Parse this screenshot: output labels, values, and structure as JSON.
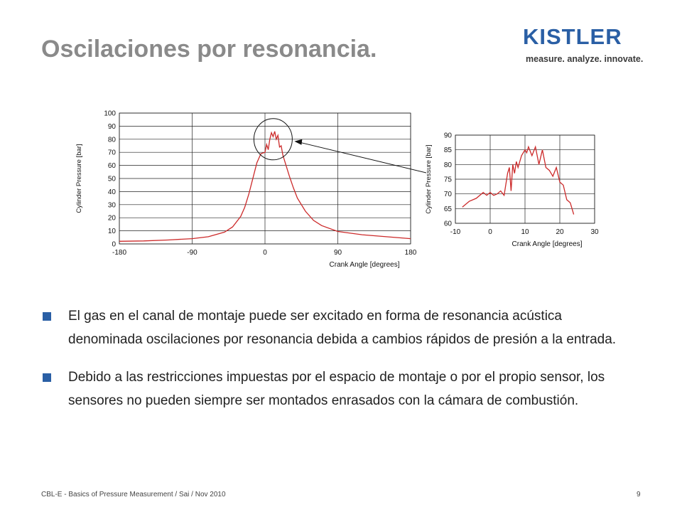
{
  "slide": {
    "title": "Oscilaciones por resonancia.",
    "logo": {
      "word": "KISTLER",
      "tagline": "measure. analyze. innovate."
    },
    "bullets": [
      "El gas en el canal de montaje puede ser excitado en forma de resonancia acústica denominada oscilaciones por resonancia debida a cambios rápidos de presión a la entrada.",
      "Debido a las restricciones impuestas por el espacio de montaje o por el propio sensor, los sensores no pueden siempre ser montados enrasados con la cámara de combustión."
    ],
    "footer": "CBL-E - Basics of Pressure Measurement / Sai / Nov 2010",
    "page_number": "9"
  },
  "colors": {
    "curve": "#cc2a2a",
    "bullet": "#2a5fa5",
    "title": "#8a8a8a",
    "logo": "#2a5fa5"
  },
  "chart_data": [
    {
      "type": "line",
      "xlabel": "Crank Angle [degrees]",
      "ylabel": "Cylinder Pressure [bar]",
      "xlim": [
        -180,
        180
      ],
      "ylim": [
        0,
        100
      ],
      "x_ticks": [
        "-180",
        "-90",
        "0",
        "90",
        "180"
      ],
      "y_ticks": [
        "0",
        "10",
        "20",
        "30",
        "40",
        "50",
        "60",
        "70",
        "80",
        "90",
        "100"
      ],
      "grid": true,
      "annotation": "circle around peak with arrow to zoomed view",
      "series": [
        {
          "x": [
            -180,
            -150,
            -120,
            -90,
            -70,
            -50,
            -40,
            -30,
            -25,
            -20,
            -15,
            -10,
            -5,
            0,
            2,
            4,
            6,
            8,
            10,
            12,
            14,
            16,
            18,
            20,
            22,
            25,
            30,
            35,
            40,
            50,
            60,
            70,
            90,
            120,
            150,
            180
          ],
          "y": [
            2,
            2.3,
            3,
            4,
            5.5,
            9,
            13,
            21,
            28,
            38,
            50,
            62,
            69,
            70,
            76,
            72,
            80,
            85,
            82,
            86,
            80,
            83,
            74,
            75,
            68,
            62,
            52,
            43,
            35,
            25,
            18,
            14,
            9.5,
            7,
            5.5,
            4
          ]
        }
      ]
    },
    {
      "type": "line",
      "xlabel": "Crank Angle [degrees]",
      "ylabel": "Cylinder Pressure [bar]",
      "xlim": [
        -10,
        30
      ],
      "ylim": [
        60,
        90
      ],
      "x_ticks": [
        "-10",
        "0",
        "10",
        "20",
        "30"
      ],
      "y_ticks": [
        "60",
        "65",
        "70",
        "75",
        "80",
        "85",
        "90"
      ],
      "grid": true,
      "series": [
        {
          "x": [
            -8,
            -6,
            -4,
            -2,
            -1,
            0,
            1,
            2,
            3,
            4,
            5,
            5.5,
            6,
            6.5,
            7,
            7.5,
            8,
            9,
            10,
            10.5,
            11,
            12,
            13,
            14,
            15,
            16,
            17,
            18,
            19,
            20,
            21,
            22,
            23,
            24
          ],
          "y": [
            65.5,
            67.5,
            68.5,
            70.5,
            69.5,
            70.5,
            69.5,
            70,
            71,
            69.5,
            77,
            79,
            71,
            80,
            77,
            81,
            79,
            83,
            85,
            84,
            86,
            83,
            86,
            80,
            85,
            79,
            78,
            76,
            79,
            74,
            73,
            68,
            67,
            63
          ]
        }
      ]
    }
  ]
}
